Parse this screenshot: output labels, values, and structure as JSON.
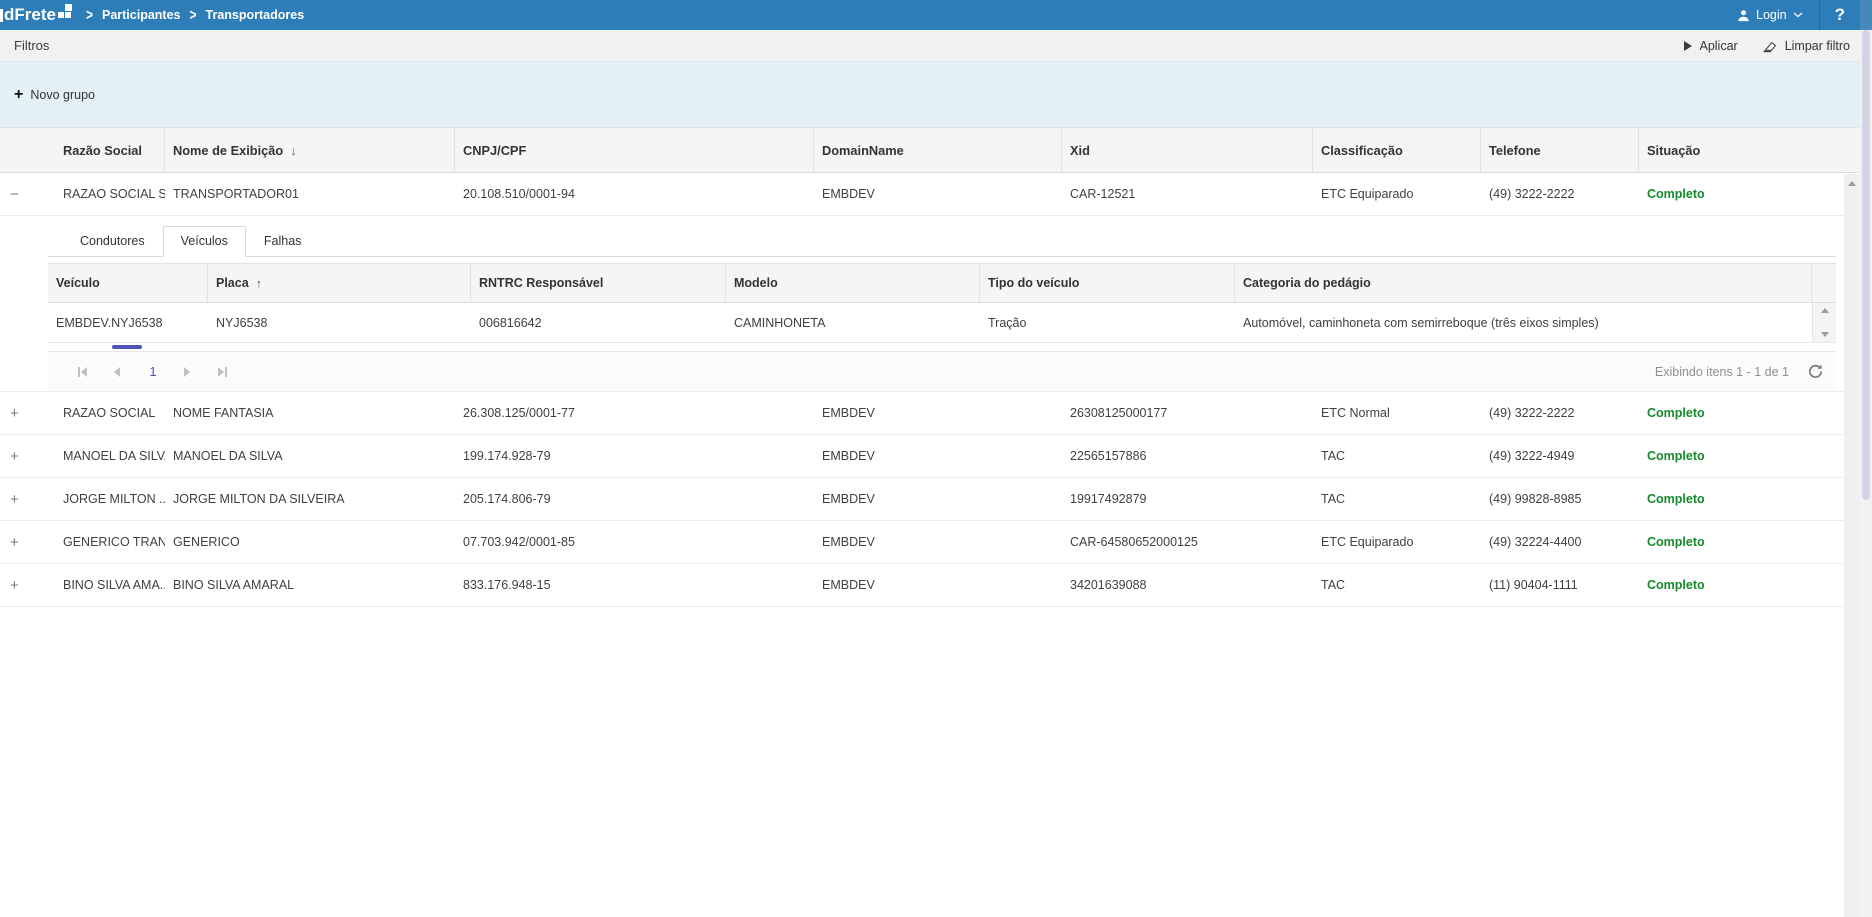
{
  "header": {
    "logo_text": "dFrete",
    "breadcrumb": [
      "Participantes",
      "Transportadores"
    ],
    "login_label": "Login",
    "help_label": "?"
  },
  "filters": {
    "title": "Filtros",
    "apply_label": "Aplicar",
    "clear_label": "Limpar filtro"
  },
  "toolbar": {
    "new_group_label": "Novo grupo",
    "plus": "+"
  },
  "colors": {
    "header_blue": "#2d7eb8",
    "band_blue": "#e3f1f6",
    "status_green": "#168a2c",
    "pager_accent": "#4b51bb"
  },
  "main_grid": {
    "columns": [
      {
        "label": "Razão Social"
      },
      {
        "label": "Nome de Exibição",
        "sort": "desc"
      },
      {
        "label": "CNPJ/CPF"
      },
      {
        "label": "DomainName"
      },
      {
        "label": "Xid"
      },
      {
        "label": "Classificação"
      },
      {
        "label": "Telefone"
      },
      {
        "label": "Situação"
      }
    ],
    "rows": [
      {
        "expanded": true,
        "razao_social": "RAZAO SOCIAL S...",
        "nome_exibicao": "TRANSPORTADOR01",
        "cnpj_cpf": "20.108.510/0001-94",
        "domain_name": "EMBDEV",
        "xid": "CAR-12521",
        "classificacao": "ETC Equiparado",
        "telefone": "(49) 3222-2222",
        "situacao": "Completo"
      },
      {
        "expanded": false,
        "razao_social": "RAZAO SOCIAL",
        "nome_exibicao": "NOME FANTASIA",
        "cnpj_cpf": "26.308.125/0001-77",
        "domain_name": "EMBDEV",
        "xid": "26308125000177",
        "classificacao": "ETC Normal",
        "telefone": "(49) 3222-2222",
        "situacao": "Completo"
      },
      {
        "expanded": false,
        "razao_social": "MANOEL DA SILVA",
        "nome_exibicao": "MANOEL DA SILVA",
        "cnpj_cpf": "199.174.928-79",
        "domain_name": "EMBDEV",
        "xid": "22565157886",
        "classificacao": "TAC",
        "telefone": "(49) 3222-4949",
        "situacao": "Completo"
      },
      {
        "expanded": false,
        "razao_social": "JORGE MILTON ...",
        "nome_exibicao": "JORGE MILTON DA SILVEIRA",
        "cnpj_cpf": "205.174.806-79",
        "domain_name": "EMBDEV",
        "xid": "19917492879",
        "classificacao": "TAC",
        "telefone": "(49) 99828-8985",
        "situacao": "Completo"
      },
      {
        "expanded": false,
        "razao_social": "GENERICO TRAN...",
        "nome_exibicao": "GENERICO",
        "cnpj_cpf": "07.703.942/0001-85",
        "domain_name": "EMBDEV",
        "xid": "CAR-64580652000125",
        "classificacao": "ETC Equiparado",
        "telefone": "(49) 32224-4400",
        "situacao": "Completo"
      },
      {
        "expanded": false,
        "razao_social": "BINO SILVA AMA...",
        "nome_exibicao": "BINO SILVA AMARAL",
        "cnpj_cpf": "833.176.948-15",
        "domain_name": "EMBDEV",
        "xid": "34201639088",
        "classificacao": "TAC",
        "telefone": "(11) 90404-1111",
        "situacao": "Completo"
      }
    ]
  },
  "detail": {
    "tabs": [
      {
        "label": "Condutores",
        "active": false
      },
      {
        "label": "Veículos",
        "active": true
      },
      {
        "label": "Falhas",
        "active": false
      }
    ],
    "vehicles_grid": {
      "columns": [
        {
          "label": "Veículo"
        },
        {
          "label": "Placa",
          "sort": "asc"
        },
        {
          "label": "RNTRC Responsável"
        },
        {
          "label": "Modelo"
        },
        {
          "label": "Tipo do veículo"
        },
        {
          "label": "Categoria do pedágio"
        }
      ],
      "rows": [
        {
          "veiculo": "EMBDEV.NYJ6538",
          "placa": "NYJ6538",
          "rntrc": "006816642",
          "modelo": "CAMINHONETA",
          "tipo": "Tração",
          "categoria": "Automóvel, caminhoneta com semirreboque (três eixos simples)"
        }
      ]
    },
    "pager": {
      "page": "1",
      "status": "Exibindo itens 1 - 1 de 1"
    }
  }
}
